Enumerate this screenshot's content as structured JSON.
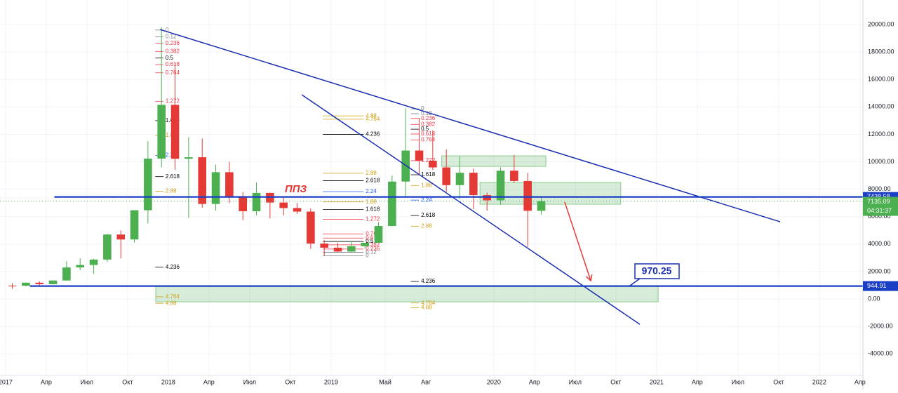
{
  "chart_data": {
    "type": "candlestick",
    "x": [
      "2017-01",
      "2017-02",
      "2017-03",
      "2017-04",
      "2017-05",
      "2017-06",
      "2017-07",
      "2017-08",
      "2017-09",
      "2017-10",
      "2017-11",
      "2017-12",
      "2018-01",
      "2018-02",
      "2018-03",
      "2018-04",
      "2018-05",
      "2018-06",
      "2018-07",
      "2018-08",
      "2018-09",
      "2018-10",
      "2018-11",
      "2018-12",
      "2019-01",
      "2019-02",
      "2019-03",
      "2019-04",
      "2019-05",
      "2019-06",
      "2019-07",
      "2019-08",
      "2019-09",
      "2019-10",
      "2019-11",
      "2019-12",
      "2020-01",
      "2020-02",
      "2020-03",
      "2020-04"
    ],
    "open": [
      970,
      965,
      1190,
      1080,
      1350,
      2300,
      2480,
      2875,
      4700,
      4340,
      6470,
      10230,
      14150,
      10220,
      10330,
      6930,
      9240,
      7500,
      6400,
      7730,
      7030,
      6630,
      6370,
      4040,
      3740,
      3460,
      3850,
      4100,
      5320,
      8560,
      10820,
      10080,
      9590,
      8300,
      9200,
      7570,
      7190,
      9350,
      8600,
      6430
    ],
    "high": [
      1150,
      1200,
      1290,
      1350,
      2760,
      2980,
      2930,
      4750,
      5000,
      6470,
      11500,
      19800,
      17250,
      11800,
      11700,
      9800,
      10000,
      7800,
      8500,
      7750,
      7400,
      7000,
      6600,
      4300,
      4100,
      4200,
      4100,
      5600,
      9000,
      13900,
      13200,
      12300,
      10900,
      10400,
      9500,
      7750,
      9600,
      10500,
      9200,
      7450
    ],
    "low": [
      750,
      920,
      890,
      1060,
      1350,
      2100,
      1840,
      2700,
      2950,
      4110,
      5500,
      9600,
      9400,
      5900,
      6650,
      6450,
      7000,
      5750,
      6100,
      5880,
      6100,
      6200,
      3650,
      3150,
      3400,
      3400,
      3700,
      4060,
      5300,
      7500,
      9100,
      9400,
      7800,
      7300,
      6550,
      6430,
      6870,
      8450,
      3800,
      6150
    ],
    "close": [
      965,
      1190,
      1080,
      1350,
      2300,
      2480,
      2875,
      4700,
      4340,
      6470,
      10230,
      14150,
      10220,
      10330,
      6930,
      9240,
      7500,
      6400,
      7730,
      7030,
      6630,
      6370,
      4040,
      3740,
      3460,
      3850,
      4100,
      5320,
      8560,
      10820,
      10080,
      9590,
      8300,
      9200,
      7570,
      7190,
      9350,
      8600,
      6430,
      7135.09
    ],
    "up_color": "#4caf50",
    "down_color": "#e53935",
    "xlim": [
      2016.966,
      2022.268
    ],
    "xticks": [
      {
        "value": 2017,
        "label": "2017"
      },
      {
        "value": 2017.25,
        "label": "Апр"
      },
      {
        "value": 2017.5,
        "label": "Июл"
      },
      {
        "value": 2017.75,
        "label": "Окт"
      },
      {
        "value": 2018,
        "label": "2018"
      },
      {
        "value": 2018.25,
        "label": "Апр"
      },
      {
        "value": 2018.5,
        "label": "Июл"
      },
      {
        "value": 2018.75,
        "label": "Окт"
      },
      {
        "value": 2019,
        "label": "2019"
      },
      {
        "value": 2019.333,
        "label": "Май"
      },
      {
        "value": 2019.583,
        "label": "Авг"
      },
      {
        "value": 2020,
        "label": "2020"
      },
      {
        "value": 2020.25,
        "label": "Апр"
      },
      {
        "value": 2020.5,
        "label": "Июл"
      },
      {
        "value": 2020.75,
        "label": "Окт"
      },
      {
        "value": 2021,
        "label": "2021"
      },
      {
        "value": 2021.25,
        "label": "Апр"
      },
      {
        "value": 2021.5,
        "label": "Июл"
      },
      {
        "value": 2021.75,
        "label": "Окт"
      },
      {
        "value": 2022,
        "label": "2022"
      },
      {
        "value": 2022.25,
        "label": "Апр"
      }
    ],
    "ylim": [
      -5570,
      21790
    ],
    "yticks": [
      {
        "value": -4000,
        "label": "-4000.00"
      },
      {
        "value": -2000,
        "label": "-2000.00"
      },
      {
        "value": 0,
        "label": "0.00"
      },
      {
        "value": 2000,
        "label": "2000.00"
      },
      {
        "value": 4000,
        "label": "4000.00"
      },
      {
        "value": 6000,
        "label": "6000.00"
      },
      {
        "value": 8000,
        "label": "8000.00"
      },
      {
        "value": 10000,
        "label": "10000.00"
      },
      {
        "value": 12000,
        "label": "12000.00"
      },
      {
        "value": 14000,
        "label": "14000.00"
      },
      {
        "value": 16000,
        "label": "16000.00"
      },
      {
        "value": 18000,
        "label": "18000.00"
      },
      {
        "value": 20000,
        "label": "20000.00"
      }
    ],
    "grid": true,
    "fib_levels": [
      0,
      0.12,
      0.236,
      0.382,
      0.5,
      0.618,
      0.764,
      1.272,
      1.618,
      1.88,
      2.24,
      2.618,
      2.88,
      4.236,
      4.764,
      4.88
    ],
    "fib_colors": [
      "#787b86",
      "#787b86",
      "#f23645",
      "#f23645",
      "#000000",
      "#f23645",
      "#f23645",
      "#f23645",
      "#000000",
      "#d4a017",
      "#2962ff",
      "#000000",
      "#d4a017",
      "#000000",
      "#d4a017",
      "#d4a017"
    ],
    "fibs": [
      {
        "anchor": [
          19600,
          15520
        ],
        "x": [
          2017.92,
          2017.97
        ]
      },
      {
        "anchor": [
          13860,
          10890
        ],
        "x": [
          2019.49,
          2019.54
        ]
      },
      {
        "anchor": [
          3150,
          5239
        ],
        "x": [
          2018.95,
          2019.2
        ]
      }
    ],
    "zones": [
      {
        "x": [
          2017.923,
          2021.01
        ],
        "y": [
          920,
          -205
        ]
      },
      {
        "x": [
          2019.68,
          2020.32
        ],
        "y": [
          10434,
          9667
        ]
      },
      {
        "x": [
          2019.915,
          2020.78
        ],
        "y": [
          8491,
          6905
        ]
      }
    ],
    "trendlines": [
      {
        "x": [
          2017.949,
          2021.76
        ],
        "y": [
          19640,
          5627
        ],
        "color": "#1a2fb0"
      },
      {
        "x": [
          2018.82,
          2020.897
        ],
        "y": [
          14885,
          -1841
        ],
        "color": "#1a2fb0"
      },
      {
        "x": [
          2020.436,
          2020.596
        ],
        "y": [
          7059,
          1330
        ],
        "color": "#e53935"
      }
    ],
    "horizontal_lines": [
      {
        "value": 7438.58,
        "start": 2017.3,
        "color": "#1a3fc4"
      },
      {
        "value": 944.91,
        "start": 2017.15,
        "color": "#1a3fc4"
      }
    ],
    "last_price": 7135.09,
    "countdown": "04:31:37",
    "callout": 970.25,
    "ppz": "ППЗ"
  }
}
